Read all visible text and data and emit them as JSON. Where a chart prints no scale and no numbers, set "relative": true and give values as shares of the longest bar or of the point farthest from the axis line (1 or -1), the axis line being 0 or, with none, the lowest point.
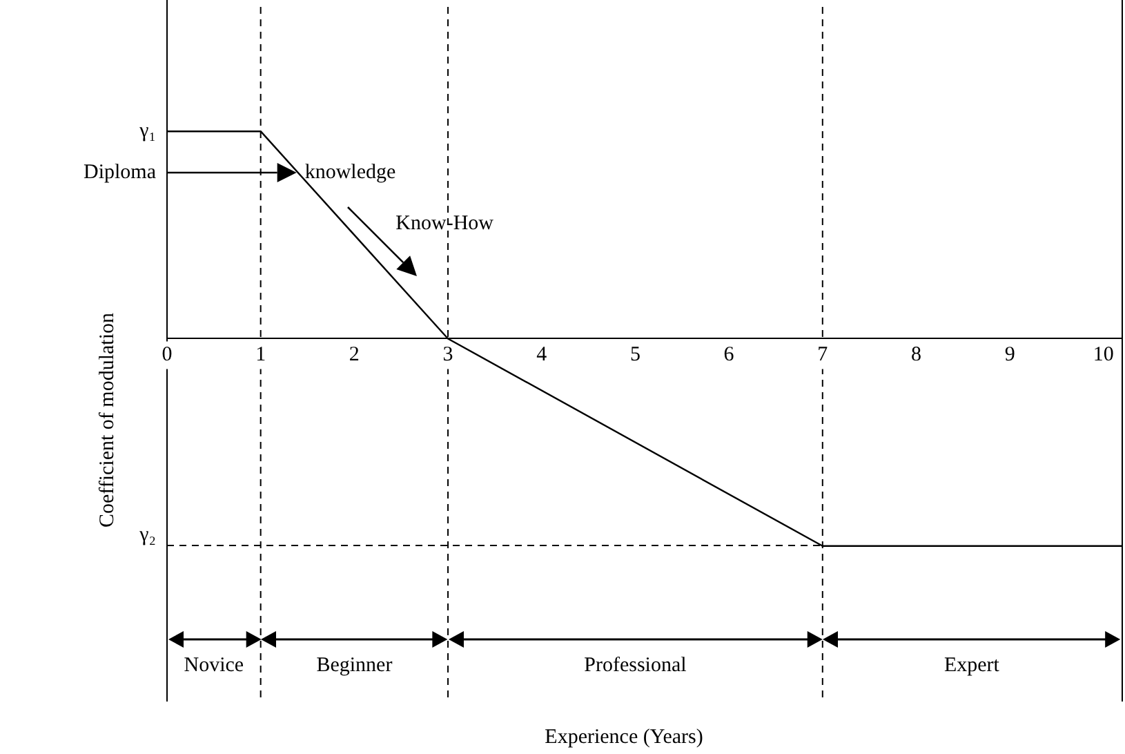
{
  "chart_data": {
    "type": "line",
    "relative": true,
    "ylabel": "Coefficient of modulation",
    "x": [
      0,
      1,
      3,
      7,
      10.2
    ],
    "series": [
      {
        "color": "#000000",
        "values": [
          1,
          1,
          0,
          -1,
          -1
        ]
      }
    ],
    "xlim": [
      0,
      10.2
    ],
    "xticks": [
      0,
      1,
      2,
      3,
      4,
      5,
      6,
      7,
      8,
      9,
      10
    ],
    "grid": false,
    "marker": "none",
    "ref_lines": [
      {
        "axis": "x",
        "value": 1,
        "line_style": "dashed"
      },
      {
        "axis": "x",
        "value": 3,
        "line_style": "dashed"
      },
      {
        "axis": "x",
        "value": 7,
        "line_style": "dashed"
      }
    ],
    "annotations": [
      "γ₁",
      "Diploma",
      "knowledge",
      "Know-How",
      "Novice",
      "Beginner",
      "Professional",
      "Expert",
      "Experience (Years)",
      "γ₂"
    ]
  }
}
